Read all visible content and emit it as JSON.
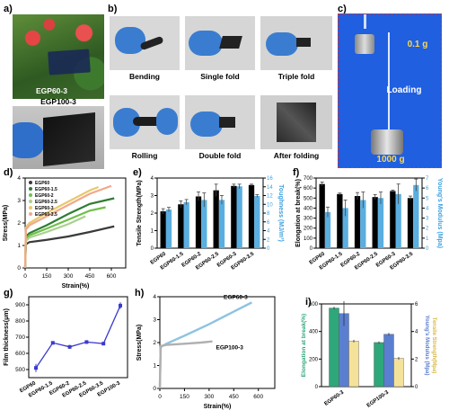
{
  "panels": {
    "a": {
      "letter": "a)",
      "label_top": "EGP60-3",
      "label_bottom": "EGP100-3"
    },
    "b": {
      "letter": "b)",
      "captions": [
        "Bending",
        "Single fold",
        "Triple fold",
        "Rolling",
        "Double fold",
        "After folding"
      ]
    },
    "c": {
      "letter": "c)",
      "small_weight": "0.1 g",
      "loading": "Loading",
      "big_weight": "1000 g"
    },
    "d": {
      "letter": "d)"
    },
    "e": {
      "letter": "e)"
    },
    "f": {
      "letter": "f)"
    },
    "g": {
      "letter": "g)"
    },
    "h": {
      "letter": "h)"
    },
    "i": {
      "letter": "i)"
    }
  },
  "chart_data": [
    {
      "id": "d",
      "type": "line",
      "xlabel": "Strain(%)",
      "ylabel": "Stress(MPa)",
      "xlim": [
        0,
        700
      ],
      "ylim": [
        0,
        4
      ],
      "xticks": [
        0,
        150,
        300,
        450,
        600
      ],
      "yticks": [
        0,
        1,
        2,
        3,
        4
      ],
      "legend": [
        "EGP60",
        "EGP60-1.5",
        "EGP60-2",
        "EGP60-2.5",
        "EGP60-3",
        "EGP60-3.5"
      ],
      "colors": [
        "#3a3a3a",
        "#2e7d32",
        "#6fbf4a",
        "#a9d18e",
        "#e8c86a",
        "#f0a98a"
      ],
      "series": [
        {
          "name": "EGP60",
          "x": [
            0,
            5,
            30,
            150,
            300,
            450,
            620
          ],
          "y": [
            0,
            1.05,
            1.15,
            1.25,
            1.4,
            1.6,
            1.85
          ]
        },
        {
          "name": "EGP60-1.5",
          "x": [
            0,
            5,
            30,
            150,
            300,
            450,
            620
          ],
          "y": [
            0,
            1.4,
            1.55,
            1.9,
            2.4,
            2.85,
            3.1
          ]
        },
        {
          "name": "EGP60-2",
          "x": [
            0,
            5,
            30,
            150,
            300,
            450,
            560
          ],
          "y": [
            0,
            1.3,
            1.45,
            1.75,
            2.15,
            2.55,
            2.7
          ]
        },
        {
          "name": "EGP60-2.5",
          "x": [
            0,
            5,
            30,
            150,
            300,
            420
          ],
          "y": [
            0,
            1.2,
            1.35,
            1.6,
            1.95,
            2.3
          ]
        },
        {
          "name": "EGP60-3",
          "x": [
            0,
            5,
            30,
            150,
            300,
            450,
            510
          ],
          "y": [
            0,
            1.8,
            2.0,
            2.45,
            2.95,
            3.45,
            3.6
          ]
        },
        {
          "name": "EGP60-3.5",
          "x": [
            0,
            5,
            30,
            150,
            300,
            450,
            600
          ],
          "y": [
            0,
            1.7,
            1.9,
            2.3,
            2.8,
            3.3,
            3.65
          ]
        }
      ]
    },
    {
      "id": "e",
      "type": "bar",
      "categories": [
        "EGP60",
        "EGP60-1.5",
        "EGP60-2",
        "EGP60-2.5",
        "EGP60-3",
        "EGP60-3.5"
      ],
      "ylabel_left": "Tensile Strength(MPa)",
      "ylabel_right": "Toughness (MJ/m³)",
      "ylim_left": [
        0,
        4
      ],
      "ylim_right": [
        0,
        16
      ],
      "yticks_left": [
        0,
        1,
        2,
        3,
        4
      ],
      "yticks_right": [
        0,
        2,
        4,
        6,
        8,
        10,
        12,
        14,
        16
      ],
      "series": [
        {
          "name": "Tensile Strength",
          "axis": "left",
          "color": "#000000",
          "values": [
            2.1,
            2.5,
            2.95,
            3.3,
            3.55,
            3.6
          ],
          "errors": [
            0.15,
            0.2,
            0.25,
            0.35,
            0.1,
            0.05
          ]
        },
        {
          "name": "Toughness",
          "axis": "right",
          "color": "#5aaee0",
          "values": [
            8.8,
            10.5,
            11.0,
            11.0,
            14.1,
            11.9
          ],
          "errors": [
            0.5,
            0.6,
            1.6,
            1.0,
            0.5,
            0.3
          ]
        }
      ]
    },
    {
      "id": "f",
      "type": "bar",
      "categories": [
        "EGP60",
        "EGP60-1.5",
        "EGP60-2",
        "EGP60-2.5",
        "EGP60-3",
        "EGP60-3.5"
      ],
      "ylabel_left": "Elongation at break(%)",
      "ylabel_right": "Young's Modulus (Mpa)",
      "ylim_left": [
        0,
        700
      ],
      "ylim_right": [
        0,
        7
      ],
      "yticks_left": [
        0,
        100,
        200,
        300,
        400,
        500,
        600,
        700
      ],
      "yticks_right": [
        0,
        1,
        2,
        3,
        4,
        5,
        6,
        7
      ],
      "series": [
        {
          "name": "Elongation at break",
          "axis": "left",
          "color": "#000000",
          "values": [
            640,
            540,
            520,
            510,
            570,
            500
          ],
          "errors": [
            20,
            10,
            35,
            25,
            10,
            20
          ]
        },
        {
          "name": "Young's Modulus",
          "axis": "right",
          "color": "#5aaee0",
          "values": [
            3.6,
            4.0,
            4.8,
            5.0,
            5.4,
            6.3
          ],
          "errors": [
            0.5,
            0.8,
            0.8,
            0.6,
            1.0,
            0.6
          ]
        }
      ]
    },
    {
      "id": "g",
      "type": "line",
      "categories": [
        "EGP60",
        "EGP60-1.5",
        "EGP60-2",
        "EGP60-2.5",
        "EGP60-3.5",
        "EGP100-3"
      ],
      "ylabel": "Film thickness(μm)",
      "ylim": [
        450,
        950
      ],
      "yticks": [
        500,
        600,
        700,
        800,
        900
      ],
      "color": "#3a3ad0",
      "values": [
        510,
        665,
        640,
        670,
        660,
        895
      ],
      "errors": [
        25,
        10,
        12,
        10,
        10,
        20
      ]
    },
    {
      "id": "h",
      "type": "line",
      "xlabel": "Strain(%)",
      "ylabel": "Stress(MPa)",
      "xlim": [
        0,
        700
      ],
      "ylim": [
        0,
        4
      ],
      "xticks": [
        0,
        150,
        300,
        450,
        600
      ],
      "yticks": [
        0,
        1,
        2,
        3,
        4
      ],
      "series": [
        {
          "name": "EGP60-3",
          "color": "#8ec3e0",
          "x": [
            0,
            5,
            40,
            150,
            300,
            450,
            560
          ],
          "y": [
            0,
            1.8,
            1.95,
            2.3,
            2.8,
            3.35,
            3.75
          ]
        },
        {
          "name": "EGP100-3",
          "color": "#b0b0b0",
          "x": [
            0,
            5,
            40,
            150,
            250,
            320
          ],
          "y": [
            0,
            1.85,
            1.9,
            1.95,
            2.0,
            2.05
          ]
        }
      ]
    },
    {
      "id": "i",
      "type": "bar",
      "categories": [
        "EGP60-3",
        "EGP100-3"
      ],
      "ylabel_left": "Elongation at break(%)",
      "ylabel_right_1": "Young's Modulus (Mpa)",
      "ylabel_right_2": "Tensile Strength(Mpa)",
      "ylim_left": [
        0,
        600
      ],
      "ylim_right": [
        0,
        6
      ],
      "yticks_left": [
        0,
        200,
        400,
        600
      ],
      "yticks_right": [
        0,
        2,
        4,
        6
      ],
      "series": [
        {
          "name": "Elongation at break",
          "axis": "left",
          "color": "#2ea77a",
          "values": [
            570,
            320
          ],
          "errors": [
            10,
            8
          ]
        },
        {
          "name": "Young's Modulus",
          "axis": "right",
          "color": "#5a7fd0",
          "values": [
            5.3,
            3.8
          ],
          "errors": [
            0.9,
            0.1
          ]
        },
        {
          "name": "Tensile Strength",
          "axis": "right",
          "color": "#f5e29a",
          "values": [
            3.3,
            2.05
          ],
          "errors": [
            0.1,
            0.1
          ]
        }
      ]
    }
  ]
}
